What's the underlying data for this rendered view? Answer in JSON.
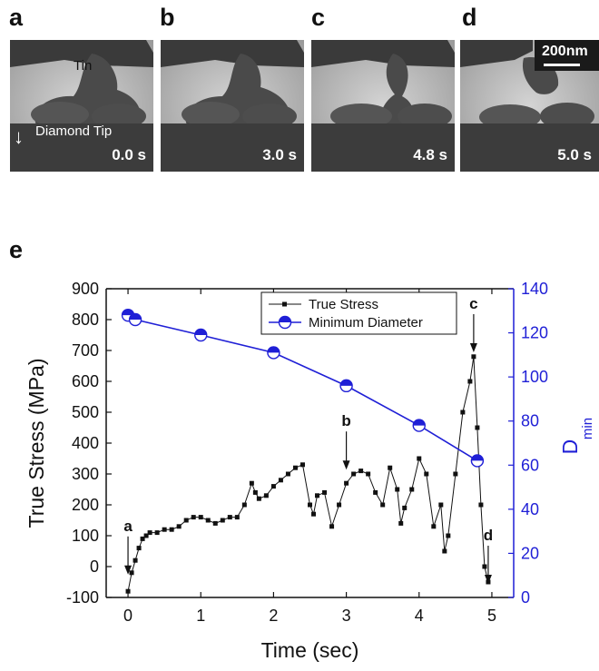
{
  "micrographs": {
    "panels": [
      {
        "letter": "a",
        "time": "0.0 s"
      },
      {
        "letter": "b",
        "time": "3.0 s"
      },
      {
        "letter": "c",
        "time": "4.8 s"
      },
      {
        "letter": "d",
        "time": "5.0 s"
      }
    ],
    "label_tin": "Tin",
    "label_diamond_tip": "Diamond Tip",
    "scale_bar": "200nm",
    "arrow_glyph": "↓"
  },
  "panel_e_letter": "e",
  "chart_data": {
    "type": "line",
    "xlabel": "Time (sec)",
    "ylabel": "True Stress (MPa)",
    "ylabel_right": "D",
    "ylabel_right_subscript": "min",
    "xlim": [
      -0.3,
      5.3
    ],
    "ylim": [
      -100,
      900
    ],
    "ylim_right": [
      0,
      140
    ],
    "x_ticks": [
      0,
      1,
      2,
      3,
      4,
      5
    ],
    "y_ticks": [
      -100,
      0,
      100,
      200,
      300,
      400,
      500,
      600,
      700,
      800,
      900
    ],
    "y_ticks_right": [
      0,
      20,
      40,
      60,
      80,
      100,
      120,
      140
    ],
    "legend": {
      "position": "top-center",
      "entries": [
        "True Stress",
        "Minimum Diameter"
      ]
    },
    "grid": false,
    "colors": {
      "stress": "#111111",
      "diameter": "#1f1fd6"
    },
    "series": [
      {
        "name": "True Stress",
        "axis": "left",
        "x": [
          0.0,
          0.05,
          0.1,
          0.15,
          0.2,
          0.25,
          0.3,
          0.4,
          0.5,
          0.6,
          0.7,
          0.8,
          0.9,
          1.0,
          1.1,
          1.2,
          1.3,
          1.4,
          1.5,
          1.6,
          1.7,
          1.75,
          1.8,
          1.9,
          2.0,
          2.1,
          2.2,
          2.3,
          2.4,
          2.5,
          2.55,
          2.6,
          2.7,
          2.8,
          2.9,
          3.0,
          3.1,
          3.2,
          3.3,
          3.4,
          3.5,
          3.6,
          3.7,
          3.75,
          3.8,
          3.9,
          4.0,
          4.1,
          4.2,
          4.3,
          4.35,
          4.4,
          4.5,
          4.6,
          4.7,
          4.75,
          4.8,
          4.85,
          4.9,
          4.95
        ],
        "values": [
          -80,
          -20,
          20,
          60,
          90,
          100,
          110,
          110,
          120,
          120,
          130,
          150,
          160,
          160,
          150,
          140,
          150,
          160,
          160,
          200,
          270,
          240,
          220,
          230,
          260,
          280,
          300,
          320,
          330,
          200,
          170,
          230,
          240,
          130,
          200,
          270,
          300,
          310,
          300,
          240,
          200,
          320,
          250,
          140,
          190,
          250,
          350,
          300,
          130,
          200,
          50,
          100,
          300,
          500,
          600,
          680,
          450,
          200,
          0,
          -50
        ]
      },
      {
        "name": "Minimum Diameter",
        "axis": "right",
        "x": [
          0.0,
          0.1,
          1.0,
          2.0,
          3.0,
          4.0,
          4.8
        ],
        "values": [
          128,
          126,
          119,
          111,
          96,
          78,
          62
        ]
      }
    ],
    "annotations": [
      {
        "label": "a",
        "x": 0.0,
        "y": -20
      },
      {
        "label": "b",
        "x": 3.0,
        "y": 320
      },
      {
        "label": "c",
        "x": 4.75,
        "y": 700
      },
      {
        "label": "d",
        "x": 4.95,
        "y": -50
      }
    ]
  }
}
